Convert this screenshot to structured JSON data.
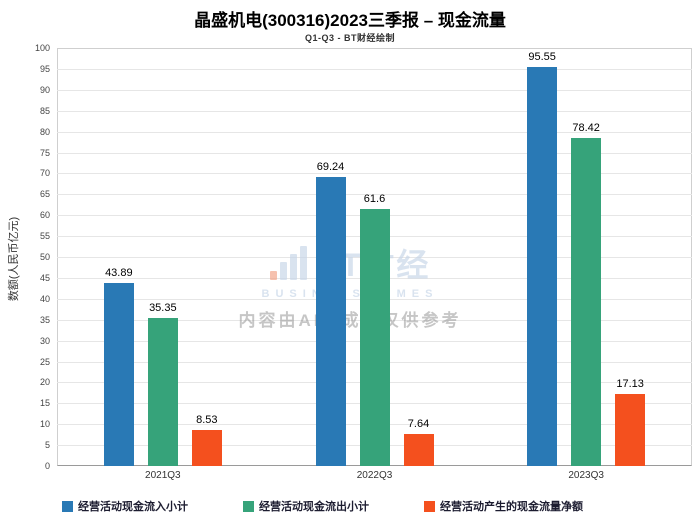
{
  "title": "晶盛机电(300316)2023三季报 – 现金流量",
  "subtitle": "Q1-Q3 - BT财经绘制",
  "watermark": {
    "logo_text": "BT财经",
    "logo_sub": "BUSINESS TIMES",
    "disclaimer": "内容由AI生成，仅供参考"
  },
  "chart_data": {
    "type": "bar",
    "title": "晶盛机电(300316)2023三季报 – 现金流量",
    "subtitle": "Q1-Q3 - BT财经绘制",
    "categories": [
      "2021Q3",
      "2022Q3",
      "2023Q3"
    ],
    "series": [
      {
        "name": "经营活动现金流入小计",
        "color": "#2979b5",
        "values": [
          43.89,
          69.24,
          95.55
        ]
      },
      {
        "name": "经营活动现金流出小计",
        "color": "#36a37a",
        "values": [
          35.35,
          61.6,
          78.42
        ]
      },
      {
        "name": "经营活动产生的现金流量净额",
        "color": "#f4501e",
        "values": [
          8.53,
          7.64,
          17.13
        ]
      }
    ],
    "xlabel": "",
    "ylabel": "数额(人民币亿元)",
    "ylim": [
      0,
      100
    ],
    "ytick_step": 5,
    "grid": true,
    "legend_position": "bottom"
  }
}
